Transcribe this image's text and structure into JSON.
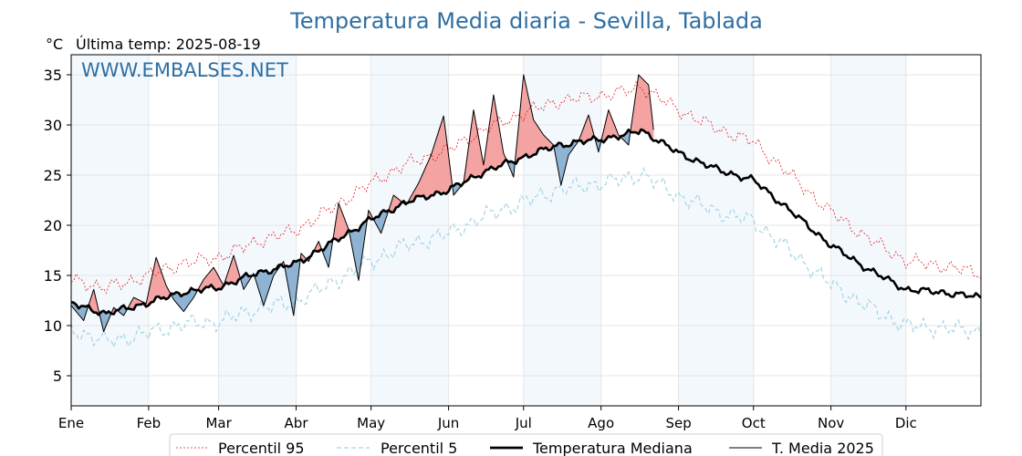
{
  "chart_data": {
    "type": "line",
    "title": "Temperatura Media diaria - Sevilla, Tablada",
    "unit": "°C",
    "last_update": "Última temp: 2025-08-19",
    "watermark": "WWW.EMBALSES.NET",
    "ylim": [
      2,
      37
    ],
    "yticks": [
      5,
      10,
      15,
      20,
      25,
      30,
      35
    ],
    "months": [
      "Ene",
      "Feb",
      "Mar",
      "Abr",
      "May",
      "Jun",
      "Jul",
      "Ago",
      "Sep",
      "Oct",
      "Nov",
      "Dic"
    ],
    "month_start_day": [
      1,
      32,
      60,
      91,
      121,
      152,
      182,
      213,
      244,
      274,
      305,
      335
    ],
    "xlim": [
      1,
      365
    ],
    "grid": true,
    "legend": "bottom",
    "median_points": [
      [
        1,
        12.2
      ],
      [
        15,
        11.2
      ],
      [
        31,
        12.2
      ],
      [
        45,
        13.3
      ],
      [
        60,
        13.8
      ],
      [
        75,
        15.2
      ],
      [
        91,
        16.2
      ],
      [
        105,
        18.2
      ],
      [
        121,
        20.6
      ],
      [
        135,
        22.3
      ],
      [
        152,
        23.5
      ],
      [
        166,
        25.3
      ],
      [
        182,
        26.8
      ],
      [
        196,
        28.0
      ],
      [
        213,
        28.6
      ],
      [
        223,
        29.0
      ],
      [
        229,
        29.5
      ],
      [
        244,
        27.2
      ],
      [
        260,
        25.5
      ],
      [
        274,
        24.5
      ],
      [
        288,
        21.6
      ],
      [
        305,
        18.0
      ],
      [
        320,
        15.6
      ],
      [
        335,
        13.6
      ],
      [
        350,
        13.3
      ],
      [
        365,
        12.8
      ]
    ],
    "p95_offset_points": [
      [
        1,
        2.4
      ],
      [
        60,
        3.0
      ],
      [
        121,
        3.6
      ],
      [
        182,
        4.4
      ],
      [
        244,
        4.3
      ],
      [
        305,
        3.3
      ],
      [
        365,
        2.4
      ]
    ],
    "p5_offset_points": [
      [
        1,
        -2.6
      ],
      [
        60,
        -3.4
      ],
      [
        121,
        -4.2
      ],
      [
        182,
        -4.5
      ],
      [
        244,
        -4.3
      ],
      [
        305,
        -3.9
      ],
      [
        365,
        -3.4
      ]
    ],
    "mean2025_points": [
      [
        1,
        12.0
      ],
      [
        6,
        10.5
      ],
      [
        10,
        13.6
      ],
      [
        14,
        9.4
      ],
      [
        18,
        11.8
      ],
      [
        22,
        11.0
      ],
      [
        26,
        12.8
      ],
      [
        31,
        12.2
      ],
      [
        35,
        16.8
      ],
      [
        39,
        14.0
      ],
      [
        42,
        12.6
      ],
      [
        46,
        11.4
      ],
      [
        50,
        12.8
      ],
      [
        54,
        14.6
      ],
      [
        58,
        15.8
      ],
      [
        62,
        14.0
      ],
      [
        66,
        17.0
      ],
      [
        70,
        13.6
      ],
      [
        74,
        15.2
      ],
      [
        78,
        12.0
      ],
      [
        82,
        15.0
      ],
      [
        86,
        16.4
      ],
      [
        90,
        11.0
      ],
      [
        93,
        17.2
      ],
      [
        96,
        16.4
      ],
      [
        100,
        18.4
      ],
      [
        104,
        15.8
      ],
      [
        108,
        22.2
      ],
      [
        112,
        19.6
      ],
      [
        116,
        14.5
      ],
      [
        120,
        21.5
      ],
      [
        125,
        19.2
      ],
      [
        130,
        23.0
      ],
      [
        135,
        22.0
      ],
      [
        140,
        24.2
      ],
      [
        145,
        27.0
      ],
      [
        150,
        30.9
      ],
      [
        154,
        23.0
      ],
      [
        158,
        24.2
      ],
      [
        162,
        31.5
      ],
      [
        166,
        26.0
      ],
      [
        170,
        33.0
      ],
      [
        174,
        27.2
      ],
      [
        178,
        24.8
      ],
      [
        182,
        35.0
      ],
      [
        186,
        30.5
      ],
      [
        190,
        29.0
      ],
      [
        194,
        28.0
      ],
      [
        197,
        24.0
      ],
      [
        200,
        27.0
      ],
      [
        204,
        28.4
      ],
      [
        208,
        31.0
      ],
      [
        212,
        27.3
      ],
      [
        216,
        31.5
      ],
      [
        220,
        29.0
      ],
      [
        224,
        28.0
      ],
      [
        228,
        35.0
      ],
      [
        232,
        34.0
      ],
      [
        234,
        29.5
      ]
    ],
    "series": [
      {
        "name": "Percentil 95",
        "color": "#e31a1c"
      },
      {
        "name": "Percentil 5",
        "color": "#a6d4e6"
      },
      {
        "name": "Temperatura Mediana",
        "color": "#000000"
      },
      {
        "name": "T. Media 2025",
        "color": "#000000"
      }
    ],
    "fill_above_color": "#f4a3a3",
    "fill_below_color": "#8fb3d3"
  }
}
